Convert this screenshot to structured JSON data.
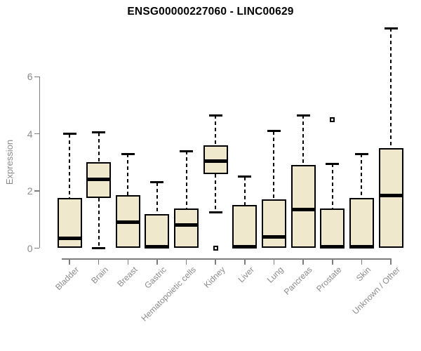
{
  "chart_data": {
    "type": "boxplot",
    "title": "ENSG00000227060 - LINC00629",
    "ylabel": "Expression",
    "xlabel": "",
    "y_axis": {
      "ticks": [
        0,
        2,
        4,
        6
      ],
      "range_visible": [
        0,
        7.8
      ],
      "grid": false
    },
    "legend": "none",
    "categories": [
      "Bladder",
      "Brain",
      "Breast",
      "Gastric",
      "Hematopoietic cells",
      "Kidney",
      "Liver",
      "Lung",
      "Pancreas",
      "Prostate",
      "Skin",
      "Unknown / Other"
    ],
    "series": [
      {
        "category": "Bladder",
        "whisker_low": 0,
        "q1": 0,
        "median": 0.35,
        "q3": 1.75,
        "whisker_high": 4.0,
        "outliers": []
      },
      {
        "category": "Brain",
        "whisker_low": 0,
        "q1": 1.75,
        "median": 2.4,
        "q3": 3.0,
        "whisker_high": 4.05,
        "outliers": []
      },
      {
        "category": "Breast",
        "whisker_low": 0,
        "q1": 0,
        "median": 0.9,
        "q3": 1.85,
        "whisker_high": 3.3,
        "outliers": []
      },
      {
        "category": "Gastric",
        "whisker_low": 0,
        "q1": 0,
        "median": 0.05,
        "q3": 1.2,
        "whisker_high": 2.3,
        "outliers": []
      },
      {
        "category": "Hematopoietic cells",
        "whisker_low": 0,
        "q1": 0,
        "median": 0.8,
        "q3": 1.4,
        "whisker_high": 3.4,
        "outliers": []
      },
      {
        "category": "Kidney",
        "whisker_low": 1.25,
        "q1": 2.6,
        "median": 3.05,
        "q3": 3.6,
        "whisker_high": 4.65,
        "outliers": [
          0
        ]
      },
      {
        "category": "Liver",
        "whisker_low": 0,
        "q1": 0,
        "median": 0.05,
        "q3": 1.5,
        "whisker_high": 2.5,
        "outliers": []
      },
      {
        "category": "Lung",
        "whisker_low": 0,
        "q1": 0,
        "median": 0.4,
        "q3": 1.7,
        "whisker_high": 4.1,
        "outliers": []
      },
      {
        "category": "Pancreas",
        "whisker_low": 0,
        "q1": 0,
        "median": 1.35,
        "q3": 2.9,
        "whisker_high": 4.65,
        "outliers": []
      },
      {
        "category": "Prostate",
        "whisker_low": 0,
        "q1": 0,
        "median": 0.05,
        "q3": 1.4,
        "whisker_high": 2.95,
        "outliers": [
          4.5
        ]
      },
      {
        "category": "Skin",
        "whisker_low": 0,
        "q1": 0,
        "median": 0.05,
        "q3": 1.75,
        "whisker_high": 3.3,
        "outliers": []
      },
      {
        "category": "Unknown / Other",
        "whisker_low": 0,
        "q1": 0,
        "median": 1.85,
        "q3": 3.5,
        "whisker_high": 7.7,
        "outliers": []
      }
    ]
  },
  "colors": {
    "box_fill": "#EFE8CC",
    "box_border": "#000000",
    "median": "#000000",
    "whisker": "#000000",
    "axis": "#7d7d7d",
    "tick_text": "#8a8a8a",
    "title_text": "#000000",
    "background": "#ffffff"
  }
}
